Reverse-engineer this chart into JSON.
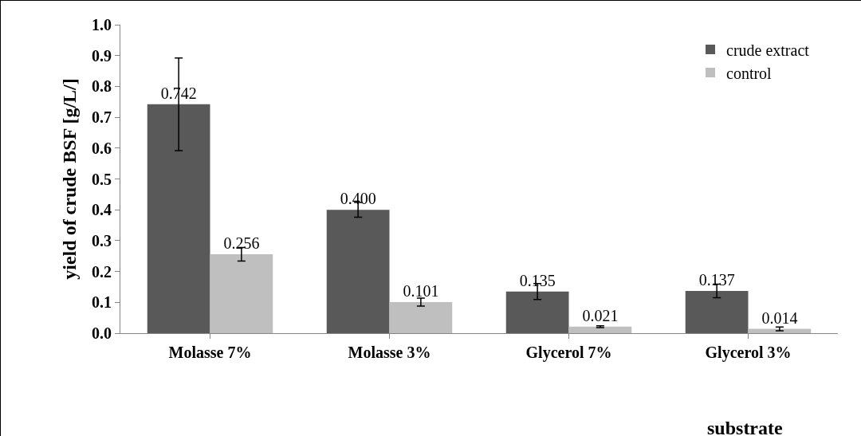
{
  "chart_data": {
    "type": "bar",
    "xlabel": "substrate",
    "ylabel": "yield of crude BSF [g/L/]",
    "categories": [
      "Molasse 7%",
      "Molasse 3%",
      "Glycerol 7%",
      "Glycerol 3%"
    ],
    "series": [
      {
        "name": "crude extract",
        "color": "#595959",
        "values": [
          0.742,
          0.4,
          0.135,
          0.137
        ],
        "value_labels": [
          "0.742",
          "0.400",
          "0.135",
          "0.137"
        ],
        "errors": [
          0.15,
          0.024,
          0.026,
          0.022
        ]
      },
      {
        "name": "control",
        "color": "#bfbfbf",
        "values": [
          0.256,
          0.101,
          0.021,
          0.014
        ],
        "value_labels": [
          "0.256",
          "0.101",
          "0.021",
          "0.014"
        ],
        "errors": [
          0.022,
          0.013,
          0.003,
          0.006
        ]
      }
    ],
    "ylim": [
      0,
      1
    ],
    "yticks": [
      {
        "value": 0,
        "label": "0.0"
      },
      0.1,
      0.2,
      0.3,
      0.4,
      0.5,
      0.6,
      0.7,
      0.8,
      0.9,
      {
        "value": 1,
        "label": "1.0"
      }
    ],
    "grid": false,
    "legend": "top right"
  }
}
